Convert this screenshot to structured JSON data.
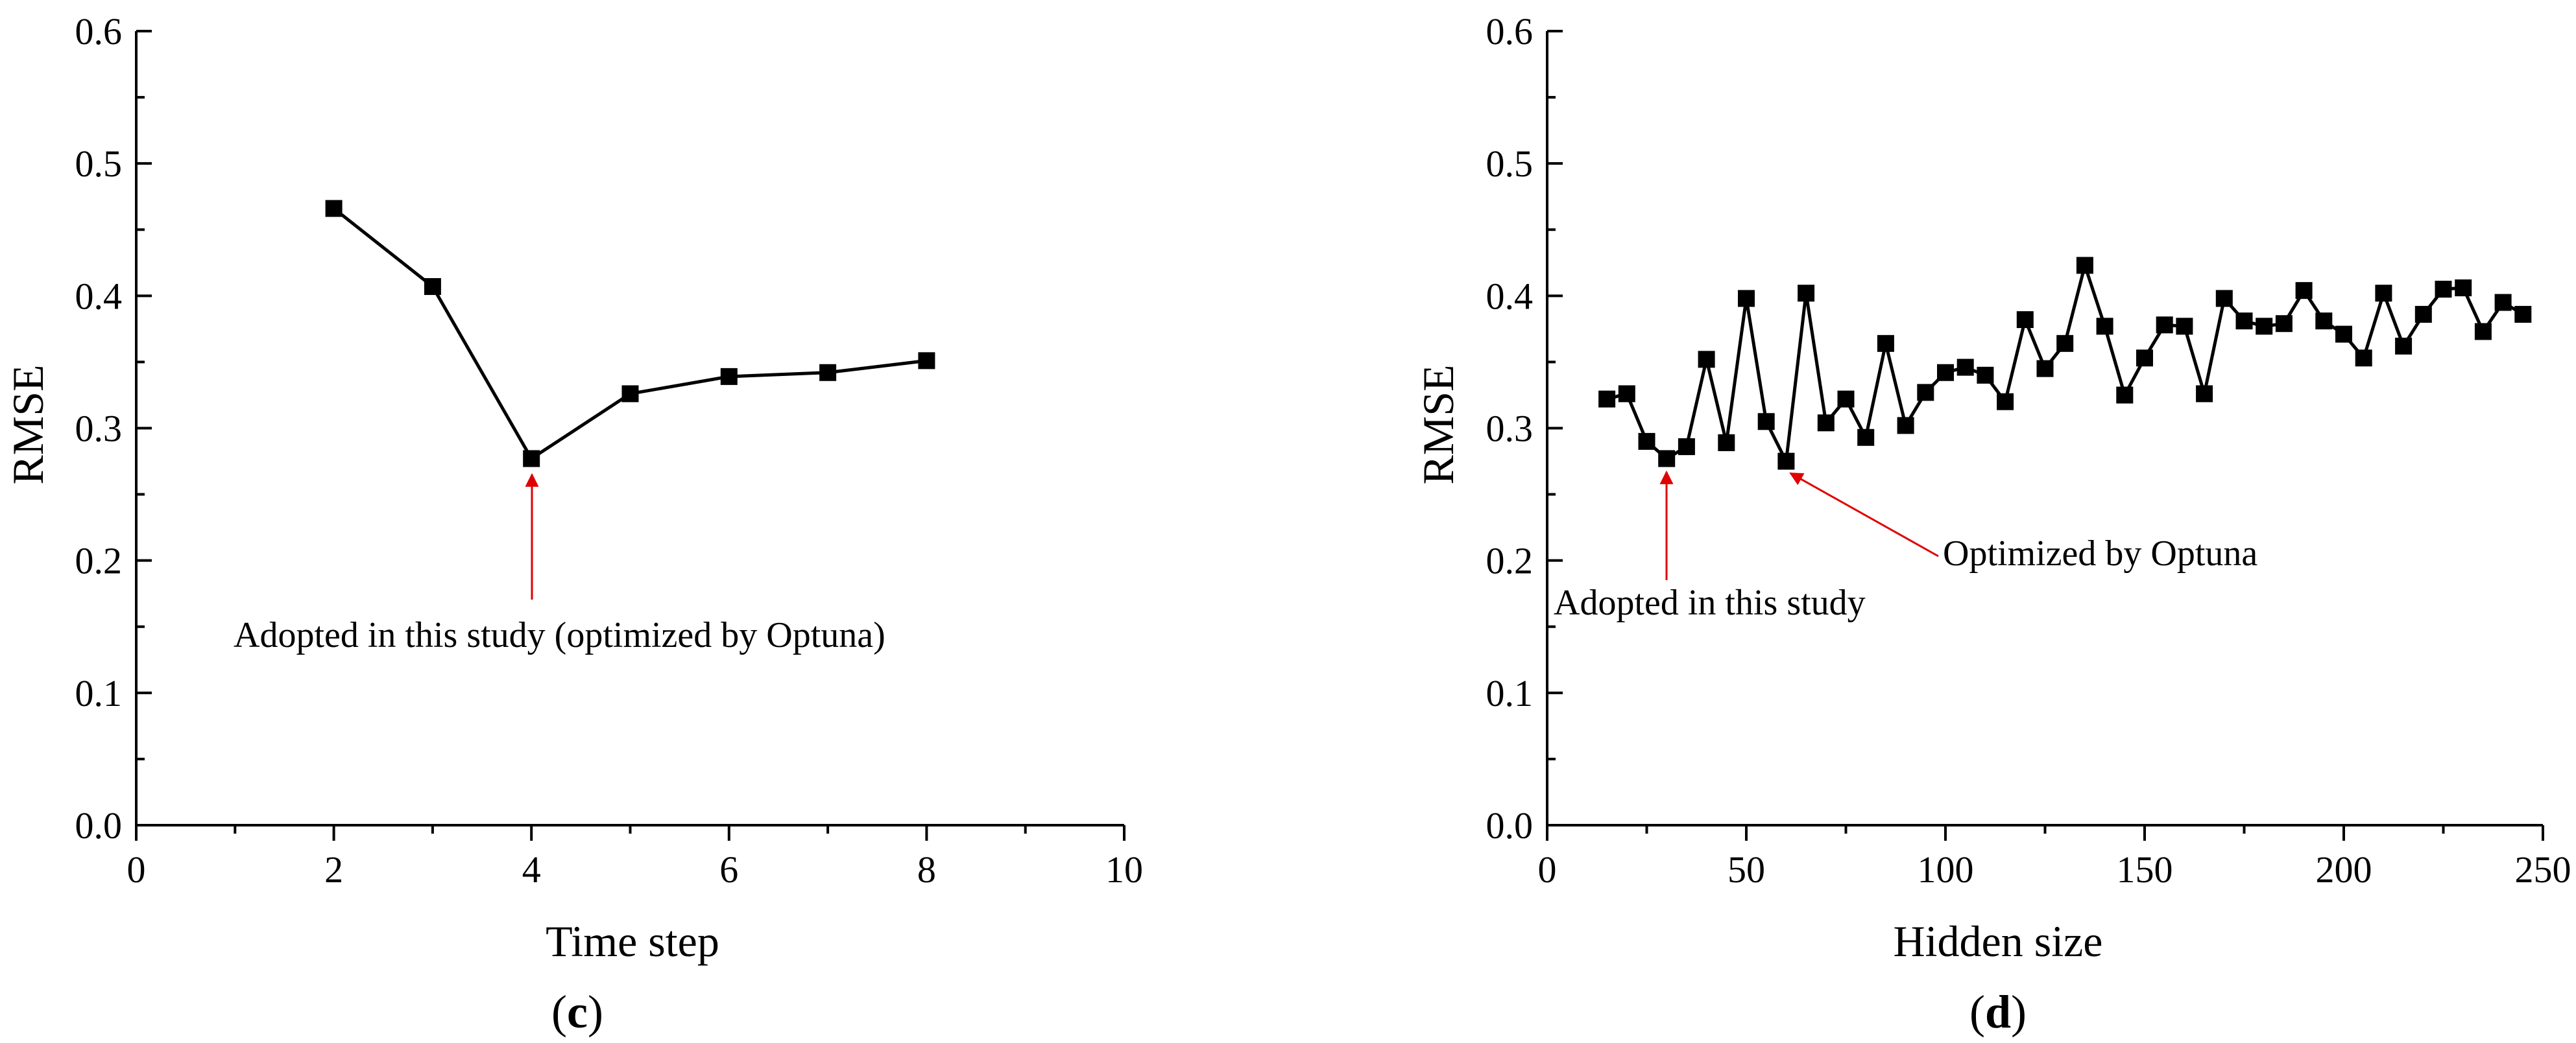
{
  "chart_data": [
    {
      "type": "line",
      "panel_label": "(c)",
      "panel_letter": "c",
      "xlabel": "Time step",
      "ylabel": "RMSE",
      "xlim": [
        0,
        10
      ],
      "ylim": [
        0.0,
        0.6
      ],
      "xticks": [
        0,
        2,
        4,
        6,
        8,
        10
      ],
      "xtick_labels": [
        "0",
        "2",
        "4",
        "6",
        "8",
        "10"
      ],
      "yticks": [
        0.0,
        0.1,
        0.2,
        0.3,
        0.4,
        0.5,
        0.6
      ],
      "ytick_labels": [
        "0.0",
        "0.1",
        "0.2",
        "0.3",
        "0.4",
        "0.5",
        "0.6"
      ],
      "series": [
        {
          "name": "RMSE",
          "marker": "square",
          "color": "#000000",
          "x": [
            2,
            3,
            4,
            5,
            6,
            7,
            8
          ],
          "y": [
            0.466,
            0.407,
            0.277,
            0.326,
            0.339,
            0.342,
            0.351
          ]
        }
      ],
      "annotations": [
        {
          "text": "Adopted in this study (optimized by Optuna)",
          "x": 4,
          "y": 0.277,
          "color": "#e00000"
        }
      ]
    },
    {
      "type": "line",
      "panel_label": "(d)",
      "panel_letter": "d",
      "xlabel": "Hidden size",
      "ylabel": "RMSE",
      "xlim": [
        0,
        250
      ],
      "ylim": [
        0.0,
        0.6
      ],
      "xticks": [
        0,
        50,
        100,
        150,
        200,
        250
      ],
      "xtick_labels": [
        "0",
        "50",
        "100",
        "150",
        "200",
        "250"
      ],
      "yticks": [
        0.0,
        0.1,
        0.2,
        0.3,
        0.4,
        0.5,
        0.6
      ],
      "ytick_labels": [
        "0.0",
        "0.1",
        "0.2",
        "0.3",
        "0.4",
        "0.5",
        "0.6"
      ],
      "series": [
        {
          "name": "RMSE",
          "marker": "square",
          "color": "#000000",
          "x": [
            15,
            20,
            25,
            30,
            35,
            40,
            45,
            50,
            55,
            60,
            65,
            70,
            75,
            80,
            85,
            90,
            95,
            100,
            105,
            110,
            115,
            120,
            125,
            130,
            135,
            140,
            145,
            150,
            155,
            160,
            165,
            170,
            175,
            180,
            185,
            190,
            195,
            200,
            205,
            210,
            215,
            220,
            225,
            230,
            235,
            240,
            245
          ],
          "y": [
            0.322,
            0.326,
            0.29,
            0.277,
            0.286,
            0.352,
            0.289,
            0.398,
            0.305,
            0.275,
            0.402,
            0.304,
            0.322,
            0.293,
            0.364,
            0.302,
            0.327,
            0.342,
            0.346,
            0.34,
            0.32,
            0.382,
            0.345,
            0.364,
            0.423,
            0.377,
            0.325,
            0.353,
            0.378,
            0.377,
            0.326,
            0.398,
            0.381,
            0.377,
            0.379,
            0.404,
            0.381,
            0.371,
            0.353,
            0.402,
            0.362,
            0.386,
            0.405,
            0.406,
            0.373,
            0.395,
            0.386
          ]
        }
      ],
      "annotations": [
        {
          "text": "Adopted in this study",
          "x": 30,
          "y": 0.277,
          "color": "#e00000"
        },
        {
          "text": "Optimized by Optuna",
          "x": 60,
          "y": 0.275,
          "color": "#e00000"
        }
      ]
    }
  ]
}
